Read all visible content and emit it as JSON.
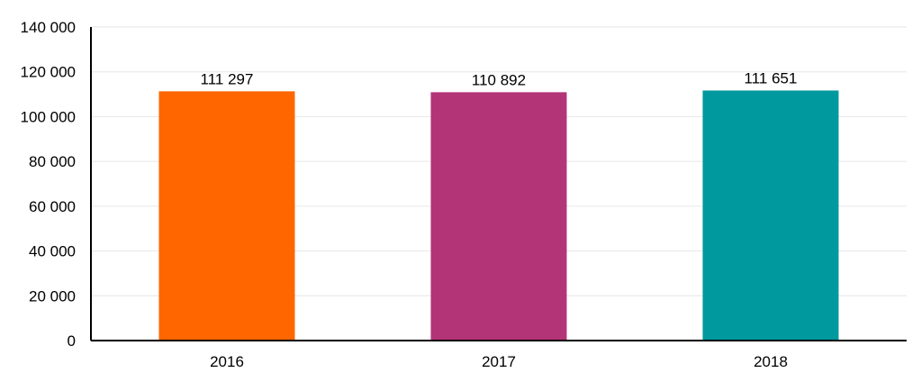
{
  "chart_data": {
    "type": "bar",
    "categories": [
      "2016",
      "2017",
      "2018"
    ],
    "values": [
      111297,
      110892,
      111651
    ],
    "value_labels": [
      "111 297",
      "110 892",
      "111 651"
    ],
    "colors": [
      "#ff6600",
      "#b33477",
      "#00999e"
    ],
    "title": "",
    "xlabel": "",
    "ylabel": "",
    "ylim": [
      0,
      140000
    ],
    "yticks": [
      0,
      20000,
      40000,
      60000,
      80000,
      100000,
      120000,
      140000
    ],
    "ytick_labels": [
      "0",
      "20 000",
      "40 000",
      "60 000",
      "80 000",
      "100 000",
      "120 000",
      "140 000"
    ],
    "grid": true,
    "legend": "none"
  }
}
